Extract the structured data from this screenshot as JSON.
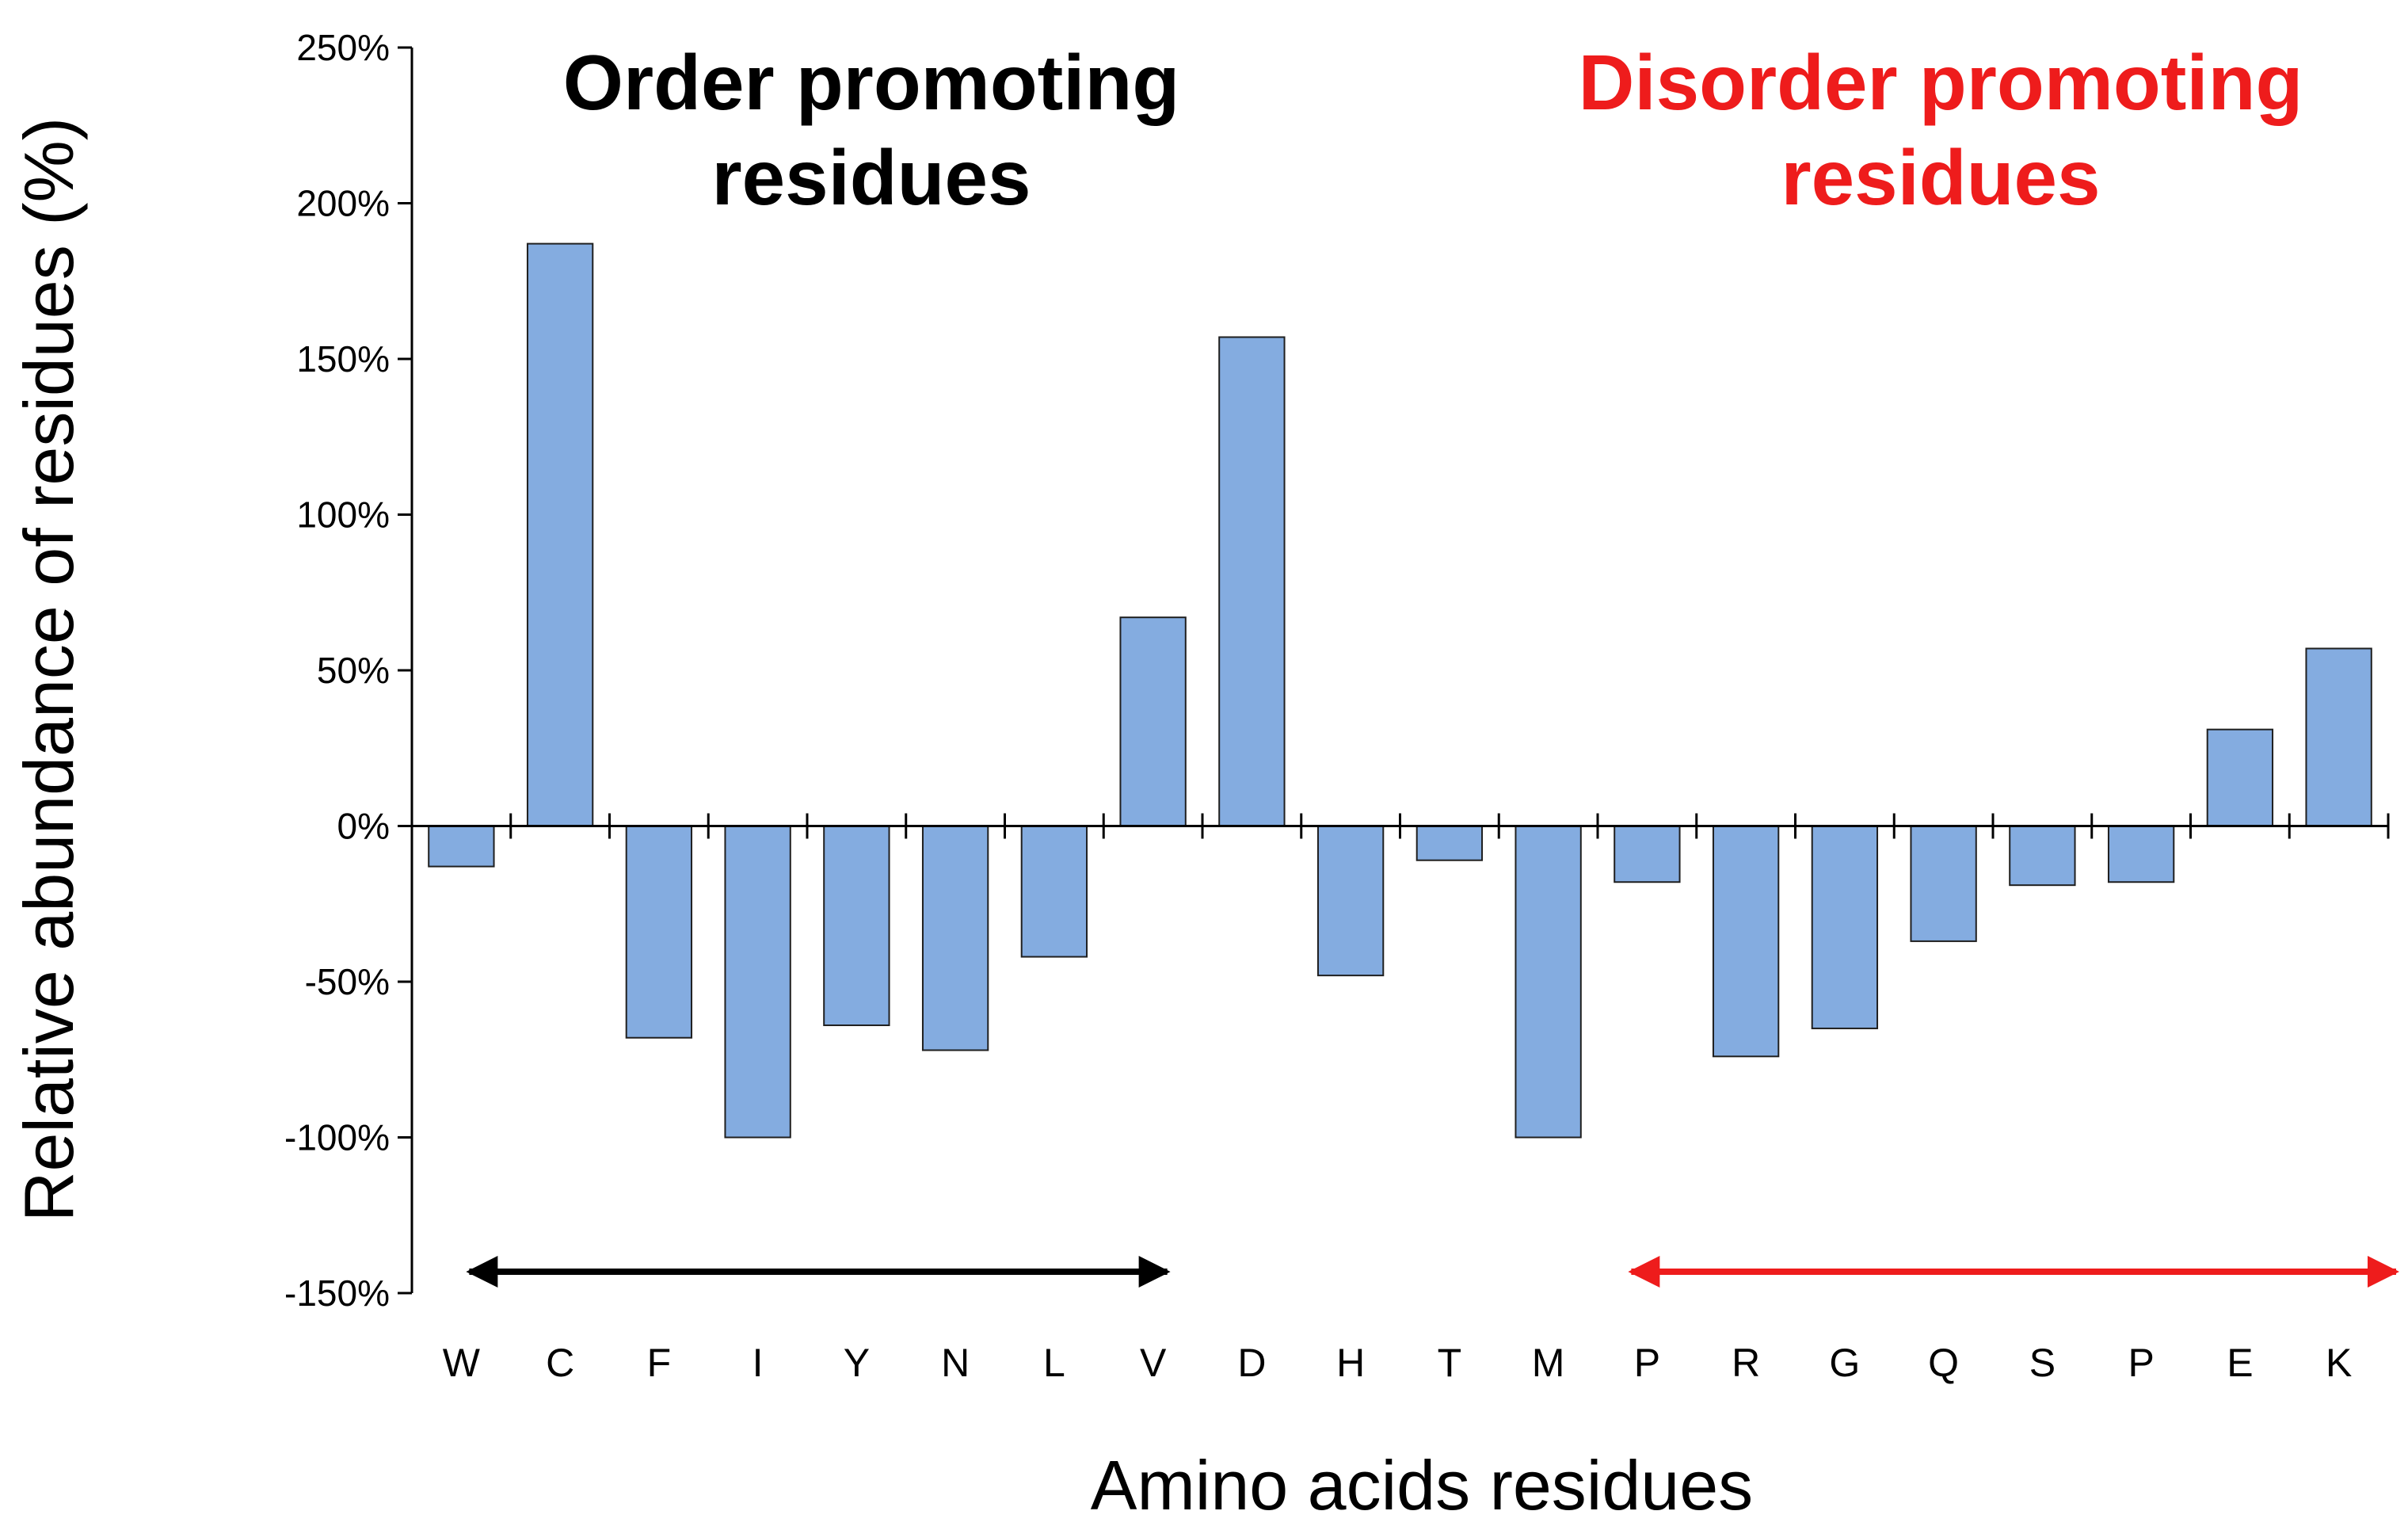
{
  "chart_data": {
    "type": "bar",
    "title": "",
    "xlabel": "Amino acids residues",
    "ylabel": "Relative abundance of residues (%)",
    "ylim": [
      -150,
      250
    ],
    "yticks": [
      250,
      200,
      150,
      100,
      50,
      0,
      -50,
      -100,
      -150
    ],
    "ytick_labels": [
      "250%",
      "200%",
      "150%",
      "100%",
      "50%",
      "0%",
      "-50%",
      "-100%",
      "-150%"
    ],
    "categories": [
      "W",
      "C",
      "F",
      "I",
      "Y",
      "N",
      "L",
      "V",
      "D",
      "H",
      "T",
      "M",
      "P",
      "R",
      "G",
      "Q",
      "S",
      "P",
      "E",
      "K"
    ],
    "values": [
      -13,
      187,
      -68,
      -100,
      -64,
      -72,
      -42,
      67,
      157,
      -48,
      -11,
      -100,
      -18,
      -74,
      -65,
      -37,
      -19,
      -18,
      31,
      57
    ],
    "grid": false,
    "bar_color": "#84ace0",
    "bar_edge_color": "#1f1f1f",
    "annotations": {
      "order": {
        "text_line1": "Order promoting",
        "text_line2": "residues",
        "color": "#000000",
        "from_category": 0,
        "to_category": 7
      },
      "disorder": {
        "text_line1": "Disorder promoting",
        "text_line2": "residues",
        "color": "#ee1c1c",
        "from_category": 12,
        "to_category": 19
      }
    }
  }
}
